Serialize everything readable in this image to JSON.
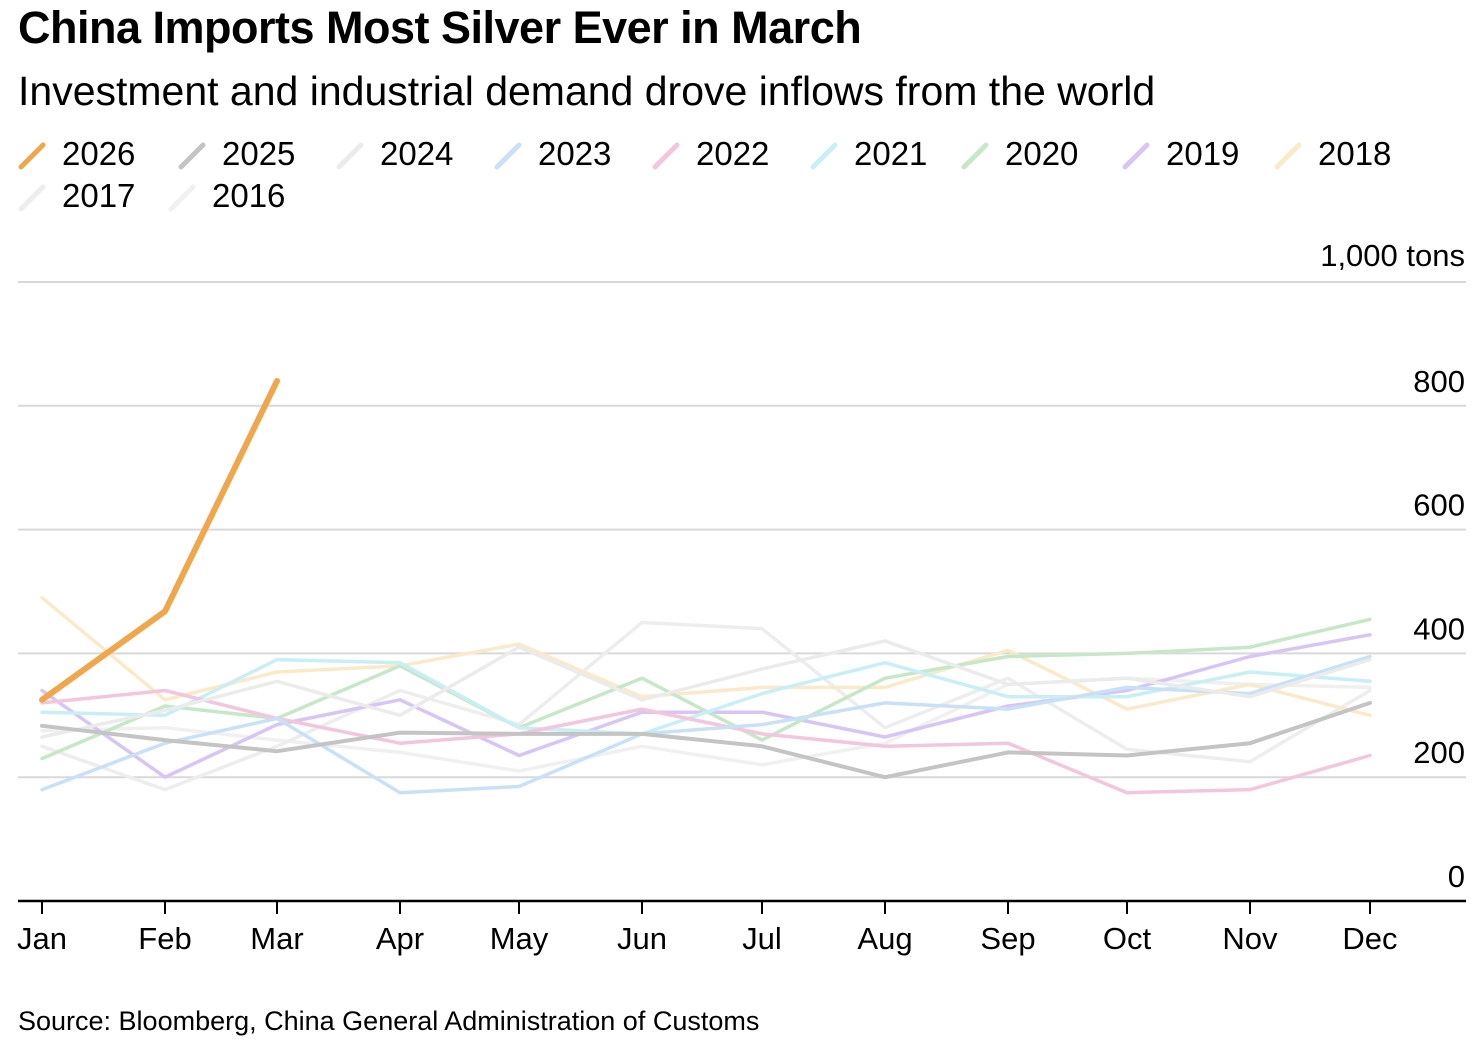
{
  "title": "China Imports Most Silver Ever in March",
  "subtitle": "Investment and industrial demand drove inflows from the world",
  "source": "Source: Bloomberg, China General Administration of Customs",
  "chart_data": {
    "type": "line",
    "title": "China Imports Most Silver Ever in March",
    "subtitle": "Investment and industrial demand drove inflows from the world",
    "xlabel": "",
    "ylabel": "",
    "y_unit_label": "1,000 tons",
    "categories": [
      "Jan",
      "Feb",
      "Mar",
      "Apr",
      "May",
      "Jun",
      "Jul",
      "Aug",
      "Sep",
      "Oct",
      "Nov",
      "Dec"
    ],
    "ylim": [
      0,
      1000
    ],
    "yticks": [
      0,
      200,
      400,
      600,
      800
    ],
    "grid": true,
    "legend_position": "top-left",
    "series": [
      {
        "name": "2026",
        "color": "#f0a64a",
        "values": [
          325,
          468,
          840,
          null,
          null,
          null,
          null,
          null,
          null,
          null,
          null,
          null
        ]
      },
      {
        "name": "2025",
        "color": "#c4c4c4",
        "values": [
          283,
          260,
          242,
          272,
          270,
          270,
          250,
          200,
          240,
          235,
          255,
          320
        ]
      },
      {
        "name": "2024",
        "color": "#ebebeb",
        "values": [
          265,
          308,
          355,
          300,
          410,
          325,
          375,
          420,
          350,
          360,
          330,
          390
        ]
      },
      {
        "name": "2023",
        "color": "#c9e1f7",
        "values": [
          180,
          255,
          295,
          175,
          185,
          270,
          285,
          320,
          310,
          345,
          335,
          395
        ]
      },
      {
        "name": "2022",
        "color": "#f2c6dc",
        "values": [
          320,
          340,
          295,
          255,
          270,
          310,
          270,
          250,
          255,
          175,
          180,
          235
        ]
      },
      {
        "name": "2021",
        "color": "#c9eff6",
        "values": [
          305,
          300,
          390,
          385,
          280,
          270,
          335,
          385,
          330,
          330,
          370,
          355
        ]
      },
      {
        "name": "2020",
        "color": "#c6e8c8",
        "values": [
          230,
          315,
          295,
          380,
          280,
          360,
          260,
          360,
          395,
          400,
          410,
          455
        ]
      },
      {
        "name": "2019",
        "color": "#d7c5f5",
        "values": [
          340,
          200,
          285,
          325,
          235,
          305,
          305,
          265,
          315,
          340,
          395,
          430
        ]
      },
      {
        "name": "2018",
        "color": "#faeac9",
        "values": [
          490,
          325,
          370,
          380,
          415,
          330,
          345,
          345,
          405,
          310,
          350,
          300
        ]
      },
      {
        "name": "2017",
        "color": "#ededed",
        "values": [
          250,
          180,
          250,
          340,
          285,
          450,
          440,
          280,
          360,
          245,
          225,
          340
        ]
      },
      {
        "name": "2016",
        "color": "#f0f0f0",
        "values": [
          275,
          280,
          260,
          240,
          210,
          250,
          220,
          255,
          350,
          360,
          350,
          345
        ]
      }
    ]
  }
}
